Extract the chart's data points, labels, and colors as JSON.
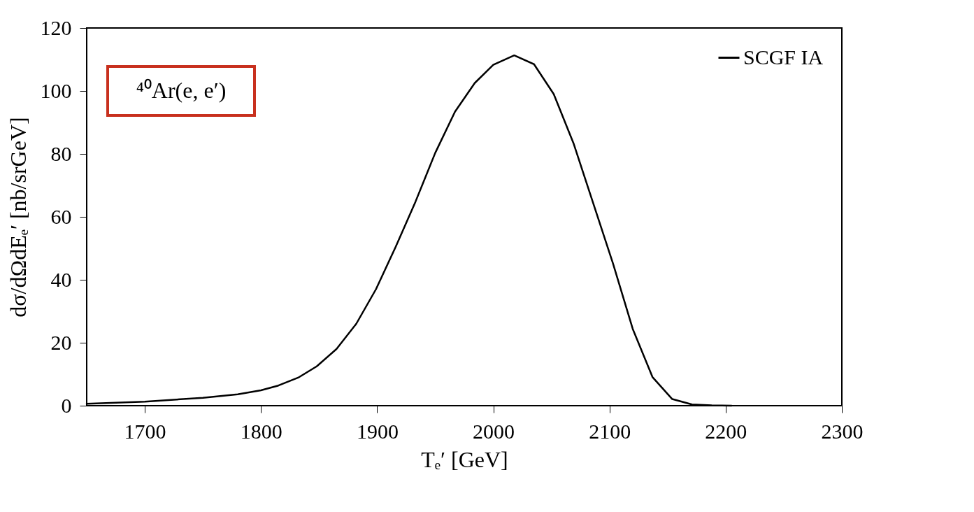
{
  "chart_data": {
    "type": "line",
    "xlabel": "Tₑ′ [GeV]",
    "ylabel": "dσ/dΩdEₑ′ [nb/srGeV]",
    "annotations": [
      "⁴⁰Ar(e, e′)"
    ],
    "x": [
      1650,
      1700,
      1750,
      1780,
      1800,
      1815,
      1832,
      1848,
      1865,
      1882,
      1899,
      1916,
      1933,
      1950,
      1967,
      1984,
      2000,
      2018,
      2035,
      2052,
      2069,
      2086,
      2103,
      2120,
      2137,
      2154,
      2171,
      2188,
      2205
    ],
    "series": [
      {
        "name": "SCGF IA",
        "color": "#000000",
        "values": [
          0.6,
          1.3,
          2.5,
          3.6,
          4.9,
          6.4,
          8.9,
          12.5,
          18,
          26,
          37,
          50.5,
          64.8,
          80.3,
          93.4,
          102.5,
          108.3,
          111.3,
          108.5,
          99,
          83.4,
          64.3,
          45.2,
          24.4,
          9.1,
          2.1,
          0.4,
          0.1,
          0
        ]
      }
    ],
    "xlim": [
      1650,
      2300
    ],
    "ylim": [
      0,
      120
    ],
    "xticks": [
      1700,
      1800,
      1900,
      2000,
      2100,
      2200,
      2300
    ],
    "yticks": [
      0,
      20,
      40,
      60,
      80,
      100,
      120
    ],
    "grid": false,
    "legend": "top right",
    "marker": "none",
    "line_style": "solid"
  }
}
